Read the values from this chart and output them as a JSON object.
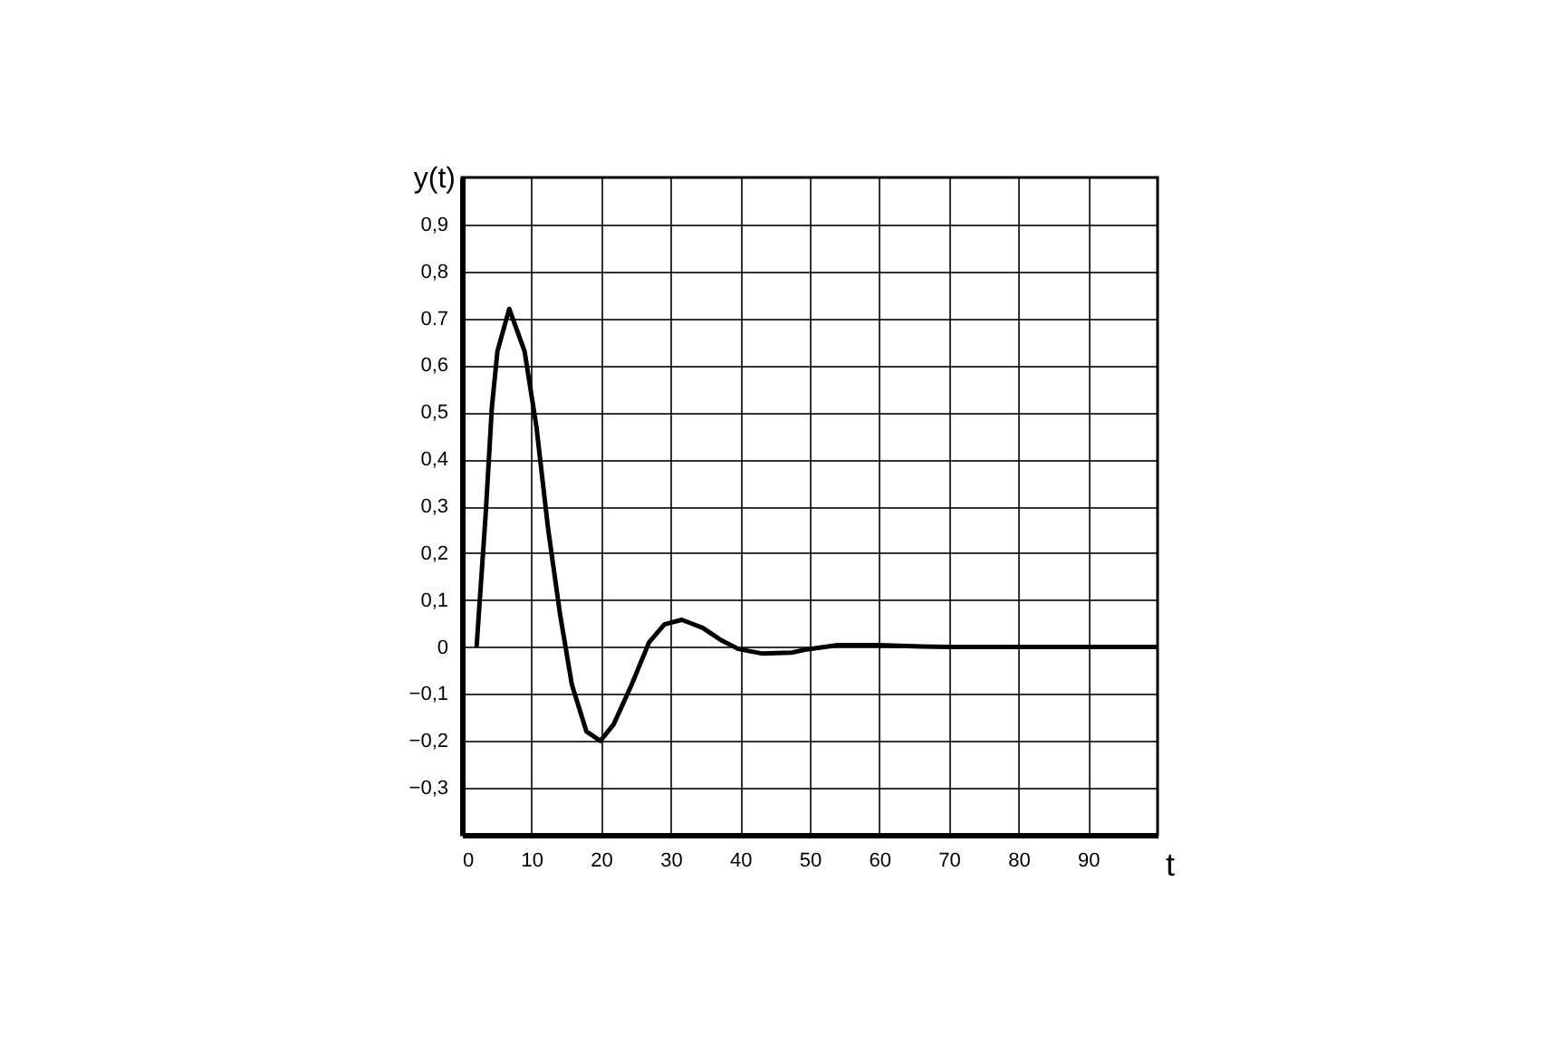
{
  "chart_data": {
    "type": "line",
    "xlabel": "t",
    "ylabel": "y(t)",
    "x": [
      2.1,
      3.4,
      4.3,
      5.1,
      6.8,
      9.0,
      10.7,
      12.4,
      14.1,
      15.8,
      17.9,
      19.9,
      21.8,
      24.4,
      26.9,
      29.1,
      31.6,
      34.6,
      37.2,
      39.7,
      43.2,
      47.4,
      49.6,
      54,
      60,
      66,
      70,
      80,
      90,
      100
    ],
    "series": [
      {
        "color": "#000000",
        "values": [
          0,
          0.28,
          0.51,
          0.63,
          0.72,
          0.63,
          0.47,
          0.25,
          0.07,
          -0.08,
          -0.18,
          -0.2,
          -0.165,
          -0.08,
          0.01,
          0.048,
          0.058,
          0.041,
          0.015,
          -0.004,
          -0.014,
          -0.012,
          -0.005,
          0.004,
          0.004,
          0.001,
          0,
          0,
          0,
          0
        ]
      }
    ],
    "xlim": [
      0,
      100
    ],
    "xticks": [
      0,
      10,
      20,
      30,
      40,
      50,
      60,
      70,
      80,
      90
    ],
    "ylim": [
      -0.4,
      1.0
    ],
    "yticks": [
      {
        "value": -0.3,
        "label": "−0,3"
      },
      {
        "value": -0.2,
        "label": "−0,2"
      },
      {
        "value": -0.1,
        "label": "−0,1"
      },
      0,
      {
        "value": 0.1,
        "label": "0,1"
      },
      {
        "value": 0.2,
        "label": "0,2"
      },
      {
        "value": 0.3,
        "label": "0,3"
      },
      {
        "value": 0.4,
        "label": "0,4"
      },
      {
        "value": 0.5,
        "label": "0,5"
      },
      {
        "value": 0.6,
        "label": "0,6"
      },
      {
        "value": 0.7,
        "label": "0.7"
      },
      {
        "value": 0.8,
        "label": "0,8"
      },
      {
        "value": 0.9,
        "label": "0,9"
      }
    ],
    "grid": true,
    "legend": false,
    "marker": "none",
    "line_style": "solid"
  }
}
